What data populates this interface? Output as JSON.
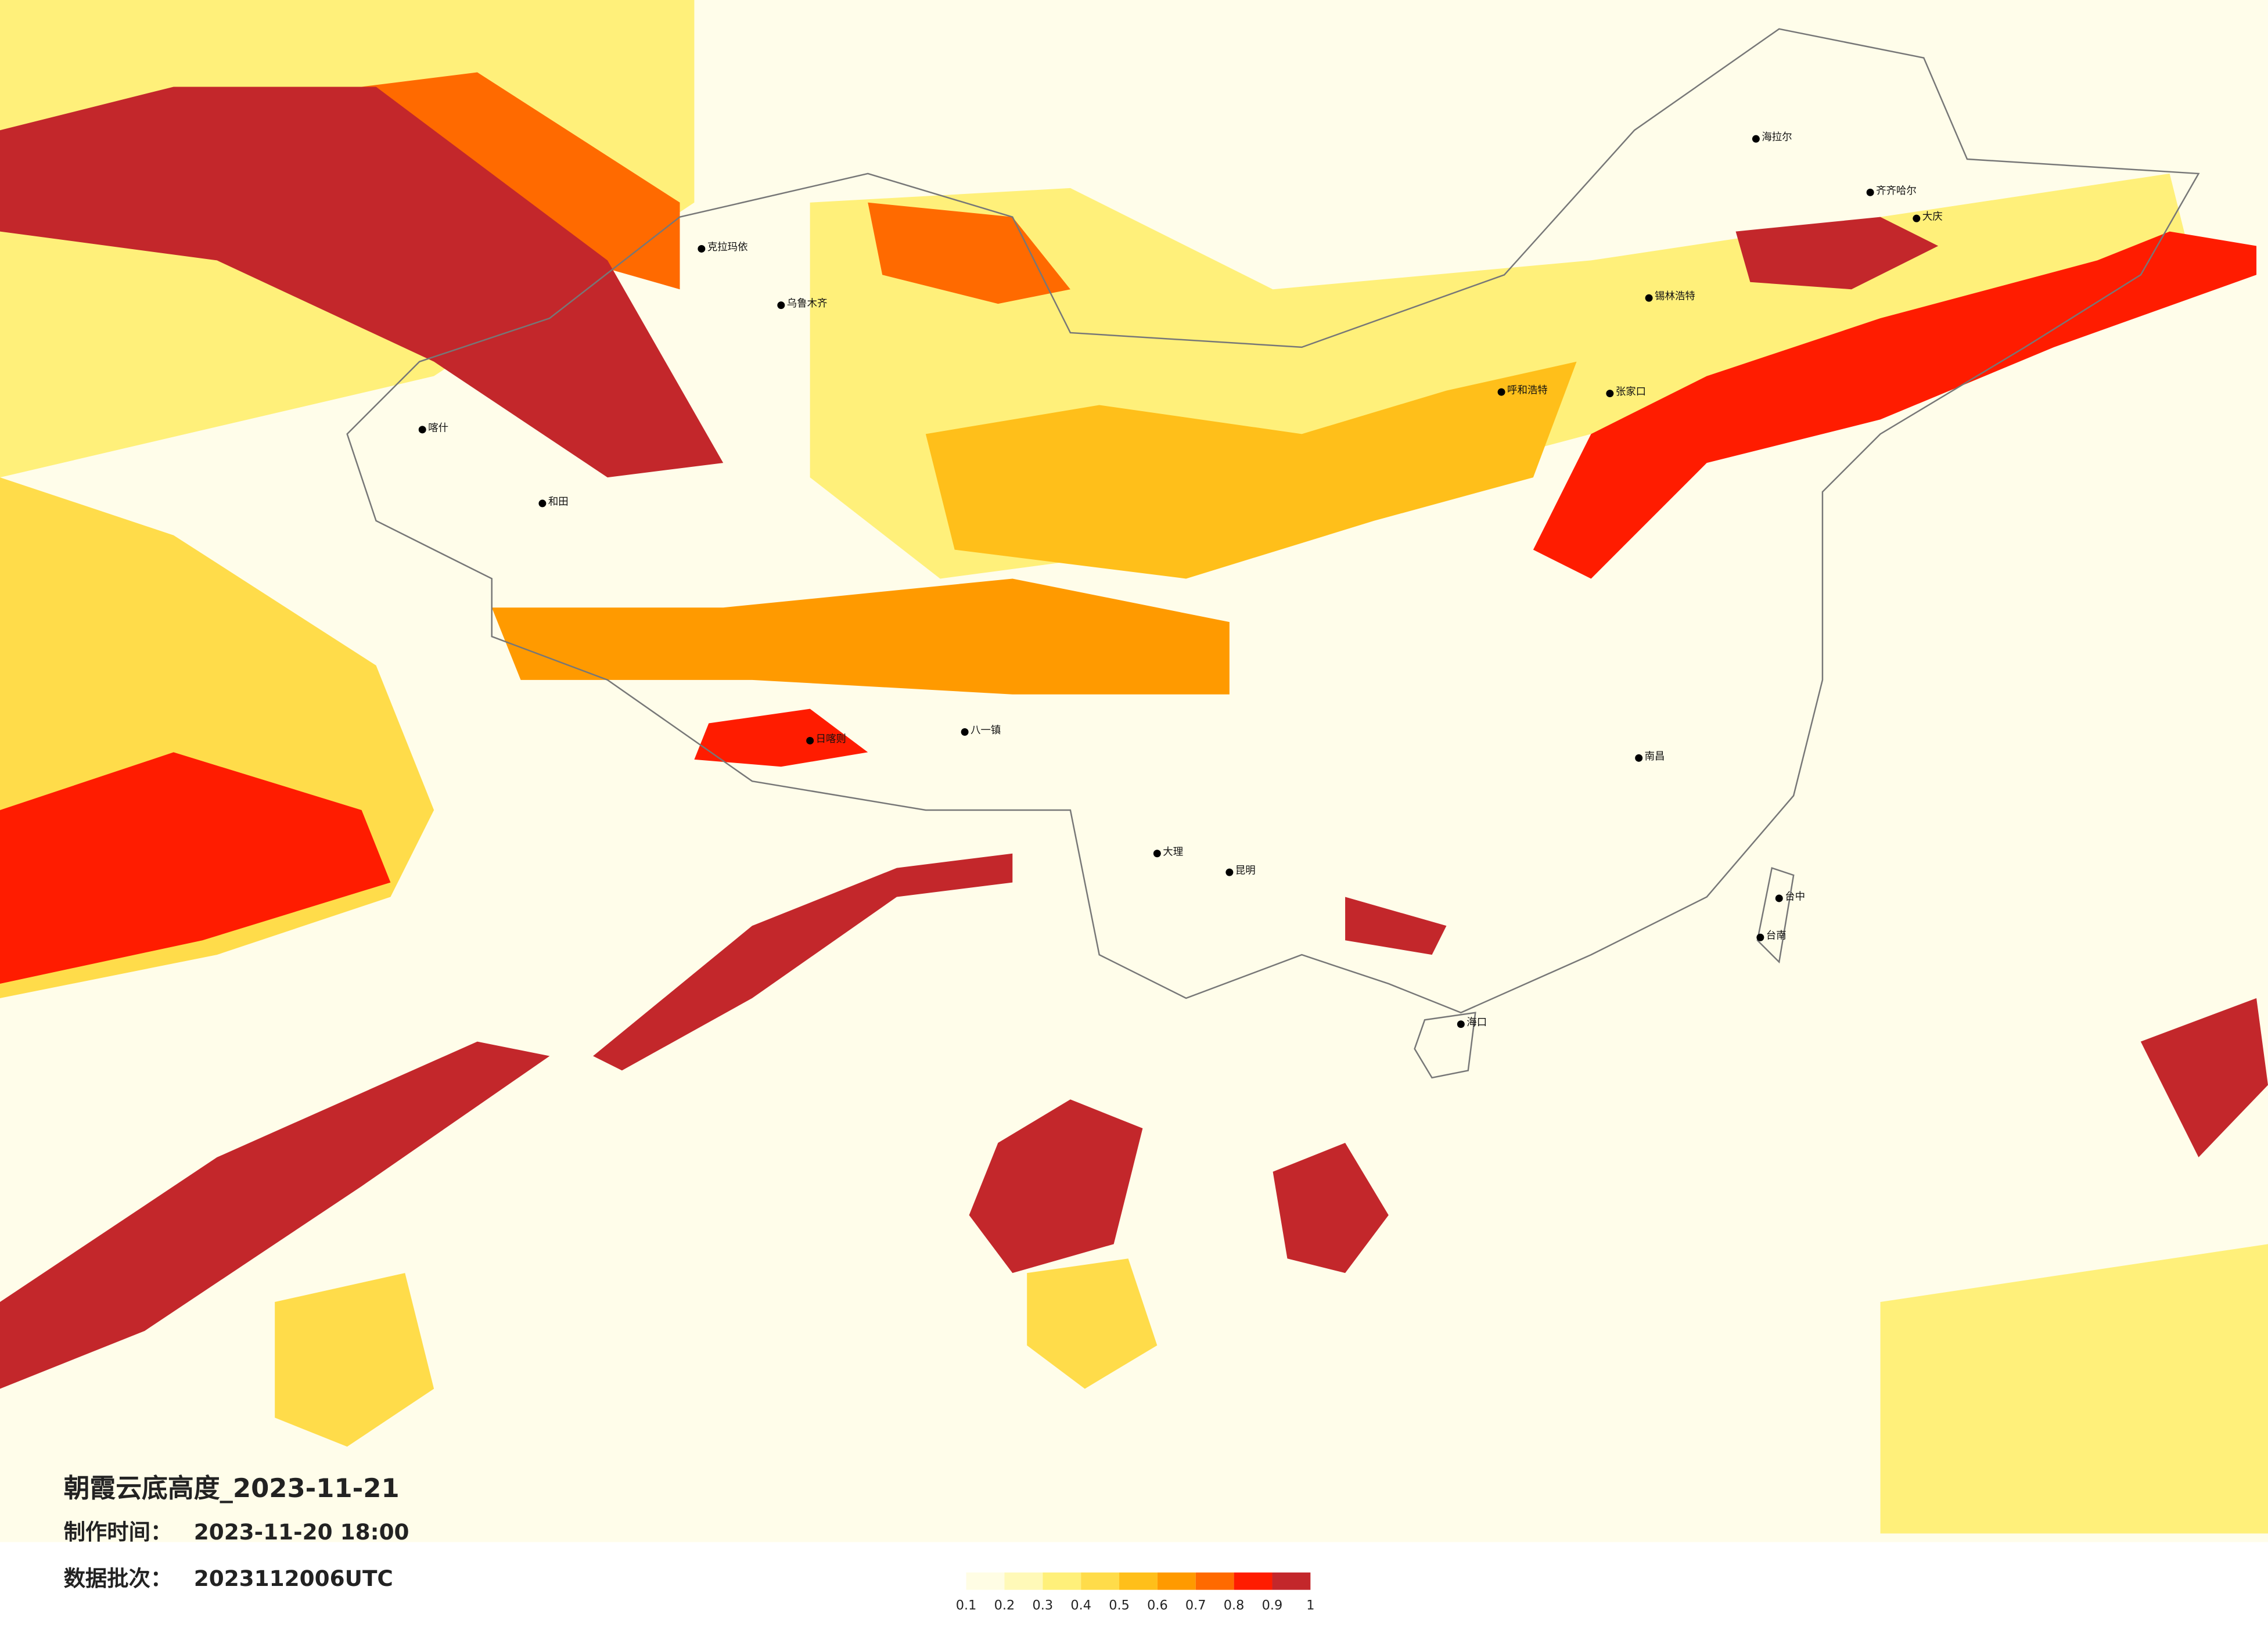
{
  "title": "朝霞云底高度_2023-11-21",
  "info": [
    {
      "label": "制作时间：",
      "value": "2023-11-20 18:00"
    },
    {
      "label": "数据批次：",
      "value": "2023112006UTC"
    }
  ],
  "legend": {
    "ticks": [
      0.1,
      0.2,
      0.3,
      0.4,
      0.5,
      0.6,
      0.7,
      0.8,
      0.9,
      1
    ],
    "colors": [
      "#fffde4",
      "#fff9b8",
      "#fff07a",
      "#ffdc4a",
      "#ffbf1a",
      "#ff9a00",
      "#ff6a00",
      "#ff1c00",
      "#c3272b"
    ]
  },
  "cities": [
    "海拉尔",
    "齐齐哈尔",
    "大庆",
    "锡林浩特",
    "呼和浩特",
    "张家口",
    "克拉玛依",
    "乌鲁木齐",
    "喀什",
    "和田",
    "日喀则",
    "八一镇",
    "大理",
    "昆明",
    "南昌",
    "台中",
    "台南",
    "海口"
  ]
}
